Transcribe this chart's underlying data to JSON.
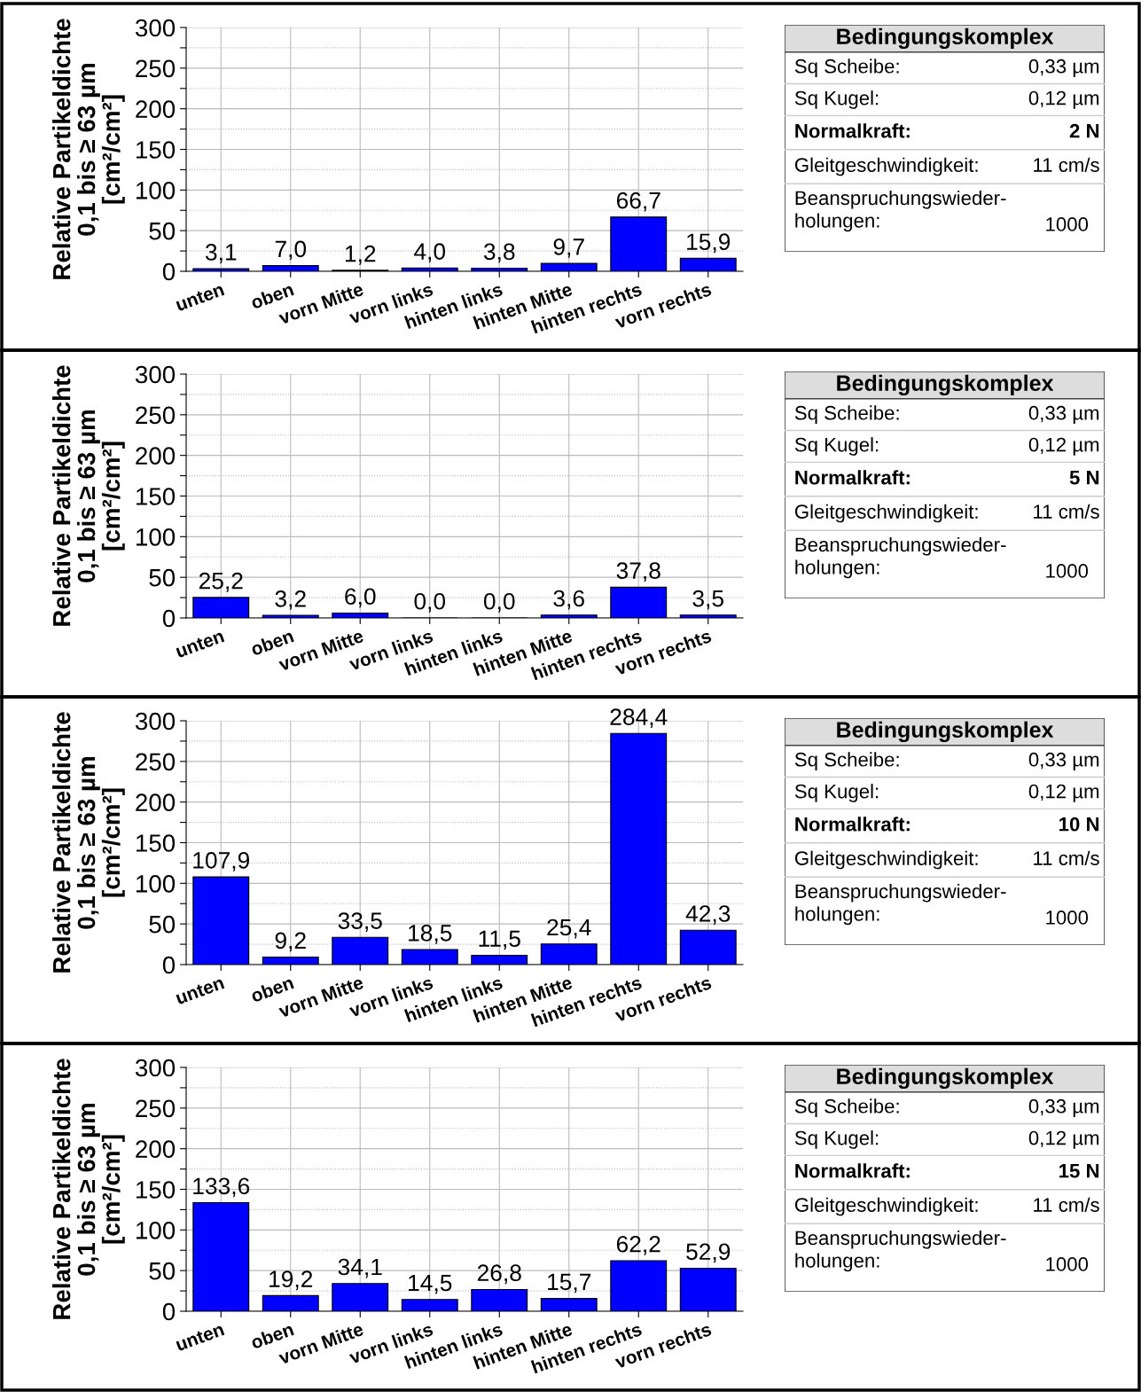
{
  "chart_data": [
    {
      "type": "bar",
      "ylabel": "Relative Partikeldichte\n0,1 bis ≥ 63 µm\n[cm²/cm²]",
      "categories": [
        "unten",
        "oben",
        "vorn Mitte",
        "vorn links",
        "hinten links",
        "hinten Mitte",
        "hinten rechts",
        "vorn rechts"
      ],
      "values": [
        3.1,
        7.0,
        1.2,
        4.0,
        3.8,
        9.7,
        66.7,
        15.9
      ],
      "value_labels": [
        "3,1",
        "7,0",
        "1,2",
        "4,0",
        "3,8",
        "9,7",
        "66,7",
        "15,9"
      ],
      "color": "#0000ff",
      "ylim": [
        0,
        300
      ],
      "yticks": [
        0,
        {
          "value": 25,
          "label": null
        },
        50,
        {
          "value": 75,
          "label": null
        },
        100,
        {
          "value": 125,
          "label": null
        },
        150,
        {
          "value": 175,
          "label": null
        },
        200,
        {
          "value": 225,
          "label": null
        },
        250,
        {
          "value": 275,
          "label": null
        },
        300
      ],
      "grid": true
    },
    {
      "type": "other",
      "title": "Bedingungskomplex",
      "annotations": [
        "Sq Scheibe:",
        "0,33 µm",
        "Sq Kugel:",
        "0,12 µm",
        "Normalkraft:",
        "2 N",
        "Gleitgeschwindigkeit:",
        "11 cm/s",
        "Beanspruchungswieder-\nholungen:",
        "1000"
      ]
    },
    {
      "type": "bar",
      "ylabel": "Relative Partikeldichte\n0,1 bis ≥ 63 µm\n[cm²/cm²]",
      "categories": [
        "unten",
        "oben",
        "vorn Mitte",
        "vorn links",
        "hinten links",
        "hinten Mitte",
        "hinten rechts",
        "vorn rechts"
      ],
      "values": [
        25.2,
        3.2,
        6.0,
        0.0,
        0.0,
        3.6,
        37.8,
        3.5
      ],
      "value_labels": [
        "25,2",
        "3,2",
        "6,0",
        "0,0",
        "0,0",
        "3,6",
        "37,8",
        "3,5"
      ],
      "color": "#0000ff",
      "ylim": [
        0,
        300
      ],
      "yticks": [
        0,
        {
          "value": 25,
          "label": null
        },
        50,
        {
          "value": 75,
          "label": null
        },
        100,
        {
          "value": 125,
          "label": null
        },
        150,
        {
          "value": 175,
          "label": null
        },
        200,
        {
          "value": 225,
          "label": null
        },
        250,
        {
          "value": 275,
          "label": null
        },
        300
      ],
      "grid": true
    },
    {
      "type": "other",
      "title": "Bedingungskomplex",
      "annotations": [
        "Sq Scheibe:",
        "0,33 µm",
        "Sq Kugel:",
        "0,12 µm",
        "Normalkraft:",
        "5 N",
        "Gleitgeschwindigkeit:",
        "11 cm/s",
        "Beanspruchungswieder-\nholungen:",
        "1000"
      ]
    },
    {
      "type": "bar",
      "ylabel": "Relative Partikeldichte\n0,1 bis ≥ 63 µm\n[cm²/cm²]",
      "categories": [
        "unten",
        "oben",
        "vorn Mitte",
        "vorn links",
        "hinten links",
        "hinten Mitte",
        "hinten rechts",
        "vorn rechts"
      ],
      "values": [
        107.9,
        9.2,
        33.5,
        18.5,
        11.5,
        25.4,
        284.4,
        42.3
      ],
      "value_labels": [
        "107,9",
        "9,2",
        "33,5",
        "18,5",
        "11,5",
        "25,4",
        "284,4",
        "42,3"
      ],
      "color": "#0000ff",
      "ylim": [
        0,
        300
      ],
      "yticks": [
        0,
        {
          "value": 25,
          "label": null
        },
        50,
        {
          "value": 75,
          "label": null
        },
        100,
        {
          "value": 125,
          "label": null
        },
        150,
        {
          "value": 175,
          "label": null
        },
        200,
        {
          "value": 225,
          "label": null
        },
        250,
        {
          "value": 275,
          "label": null
        },
        300
      ],
      "grid": true
    },
    {
      "type": "other",
      "title": "Bedingungskomplex",
      "annotations": [
        "Sq Scheibe:",
        "0,33 µm",
        "Sq Kugel:",
        "0,12 µm",
        "Normalkraft:",
        "10 N",
        "Gleitgeschwindigkeit:",
        "11 cm/s",
        "Beanspruchungswieder-\nholungen:",
        "1000"
      ]
    },
    {
      "type": "bar",
      "ylabel": "Relative Partikeldichte\n0,1 bis ≥ 63 µm\n[cm²/cm²]",
      "categories": [
        "unten",
        "oben",
        "vorn Mitte",
        "vorn links",
        "hinten links",
        "hinten Mitte",
        "hinten rechts",
        "vorn rechts"
      ],
      "values": [
        133.6,
        19.2,
        34.1,
        14.5,
        26.8,
        15.7,
        62.2,
        52.9
      ],
      "value_labels": [
        "133,6",
        "19,2",
        "34,1",
        "14,5",
        "26,8",
        "15,7",
        "62,2",
        "52,9"
      ],
      "color": "#0000ff",
      "ylim": [
        0,
        300
      ],
      "yticks": [
        0,
        {
          "value": 25,
          "label": null
        },
        50,
        {
          "value": 75,
          "label": null
        },
        100,
        {
          "value": 125,
          "label": null
        },
        150,
        {
          "value": 175,
          "label": null
        },
        200,
        {
          "value": 225,
          "label": null
        },
        250,
        {
          "value": 275,
          "label": null
        },
        300
      ],
      "grid": true
    },
    {
      "type": "other",
      "title": "Bedingungskomplex",
      "annotations": [
        "Sq Scheibe:",
        "0,33 µm",
        "Sq Kugel:",
        "0,12 µm",
        "Normalkraft:",
        "15 N",
        "Gleitgeschwindigkeit:",
        "11 cm/s",
        "Beanspruchungswieder-\nholungen:",
        "1000"
      ]
    }
  ]
}
